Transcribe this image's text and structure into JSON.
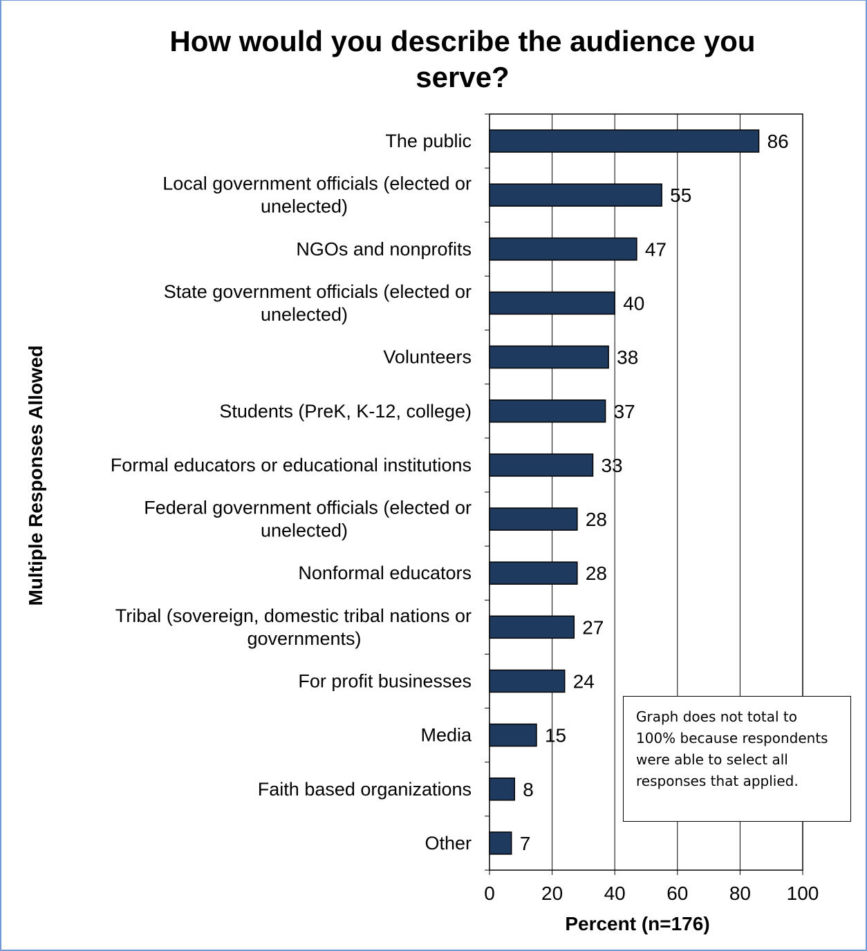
{
  "colors": {
    "bar_fill": "#1f3a5f",
    "bar_stroke": "#000000",
    "frame_border": "#6f9ad6",
    "gridline": "#000000"
  },
  "note": "Graph does not total to 100% because respondents were able to select all responses that applied.",
  "chart_data": {
    "type": "bar",
    "orientation": "horizontal",
    "title_lines": [
      "How would you describe the audience you",
      "serve?"
    ],
    "xlabel": "Percent (n=176)",
    "ylabel": "Multiple Responses Allowed",
    "xlim": [
      0,
      100
    ],
    "xticks": [
      0,
      20,
      40,
      60,
      80,
      100
    ],
    "grid": "vertical",
    "categories": [
      [
        "The public"
      ],
      [
        "Local government officials (elected or",
        "unelected)"
      ],
      [
        "NGOs and nonprofits"
      ],
      [
        "State government officials (elected or",
        "unelected)"
      ],
      [
        "Volunteers"
      ],
      [
        "Students (PreK, K-12, college)"
      ],
      [
        "Formal educators or educational institutions"
      ],
      [
        "Federal government officials (elected or",
        "unelected)"
      ],
      [
        "Nonformal educators"
      ],
      [
        "Tribal (sovereign, domestic tribal nations or",
        "governments)"
      ],
      [
        "For profit businesses"
      ],
      [
        "Media"
      ],
      [
        "Faith based organizations"
      ],
      [
        "Other"
      ]
    ],
    "values": [
      86,
      55,
      47,
      40,
      38,
      37,
      33,
      28,
      28,
      27,
      24,
      15,
      8,
      7
    ]
  }
}
